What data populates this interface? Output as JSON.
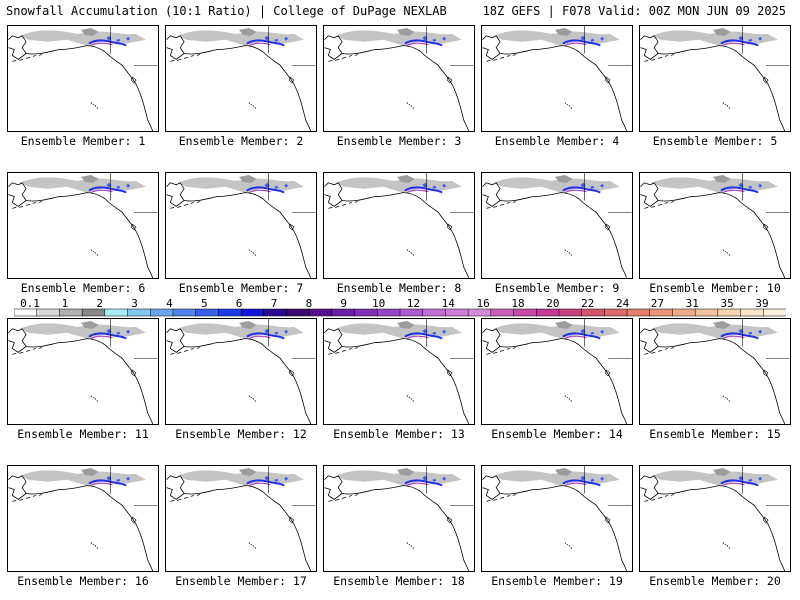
{
  "header": {
    "left": "Snowfall Accumulation (10:1 Ratio) | College of DuPage NEXLAB",
    "right": "18Z GEFS | F078 Valid: 00Z MON JUN 09 2025"
  },
  "members": [
    {
      "label": "Ensemble Member: 1"
    },
    {
      "label": "Ensemble Member: 2"
    },
    {
      "label": "Ensemble Member: 3"
    },
    {
      "label": "Ensemble Member: 4"
    },
    {
      "label": "Ensemble Member: 5"
    },
    {
      "label": "Ensemble Member: 6"
    },
    {
      "label": "Ensemble Member: 7"
    },
    {
      "label": "Ensemble Member: 8"
    },
    {
      "label": "Ensemble Member: 9"
    },
    {
      "label": "Ensemble Member: 10"
    },
    {
      "label": "Ensemble Member: 11"
    },
    {
      "label": "Ensemble Member: 12"
    },
    {
      "label": "Ensemble Member: 13"
    },
    {
      "label": "Ensemble Member: 14"
    },
    {
      "label": "Ensemble Member: 15"
    },
    {
      "label": "Ensemble Member: 16"
    },
    {
      "label": "Ensemble Member: 17"
    },
    {
      "label": "Ensemble Member: 18"
    },
    {
      "label": "Ensemble Member: 19"
    },
    {
      "label": "Ensemble Member: 20"
    }
  ],
  "colorbar": {
    "labels": [
      "0.1",
      "1",
      "2",
      "3",
      "4",
      "5",
      "6",
      "7",
      "8",
      "9",
      "10",
      "12",
      "14",
      "16",
      "18",
      "20",
      "22",
      "24",
      "27",
      "31",
      "35",
      "39"
    ],
    "colors": [
      "#ffffff",
      "#d8d8d8",
      "#b0b0b0",
      "#888888",
      "#a6ecf5",
      "#7fc8f0",
      "#6aa6ee",
      "#4f84ec",
      "#3460ea",
      "#1f3de6",
      "#1414d8",
      "#2a0a8e",
      "#3c0a70",
      "#55128a",
      "#6a1ea3",
      "#8030b8",
      "#9844c8",
      "#ae58d2",
      "#c26cd8",
      "#d07cdc",
      "#d68ad8",
      "#cc5fb8",
      "#c84aa8",
      "#c43a94",
      "#c7407e",
      "#d2556e",
      "#dc6a6a",
      "#e47e6c",
      "#ec9476",
      "#f0aa88",
      "#f4bf9c",
      "#f8d4b4",
      "#fbe6cc",
      "#fdf0de"
    ]
  }
}
